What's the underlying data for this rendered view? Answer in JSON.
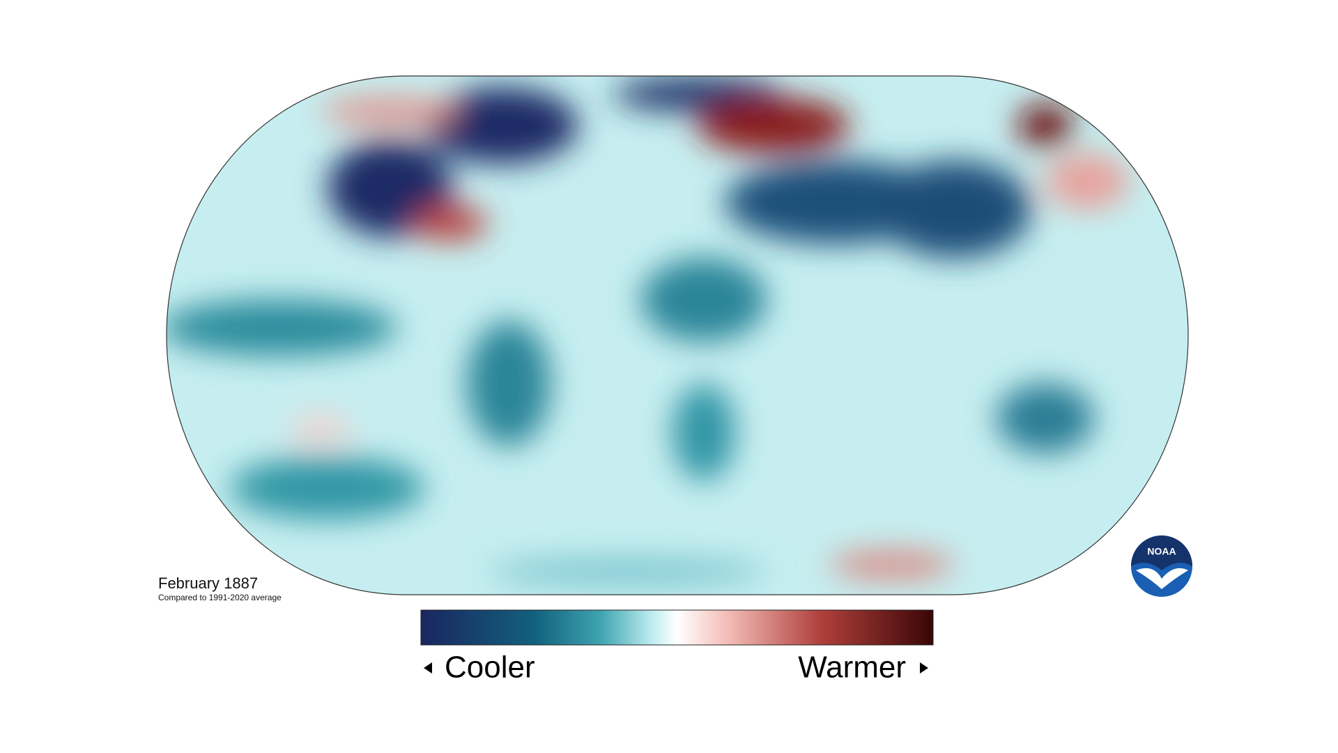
{
  "title": "February 1887",
  "subtitle": "Compared to 1991-2020 average",
  "legend": {
    "low_label": "Cooler",
    "high_label": "Warmer"
  },
  "logo": {
    "text": "NOAA"
  }
}
